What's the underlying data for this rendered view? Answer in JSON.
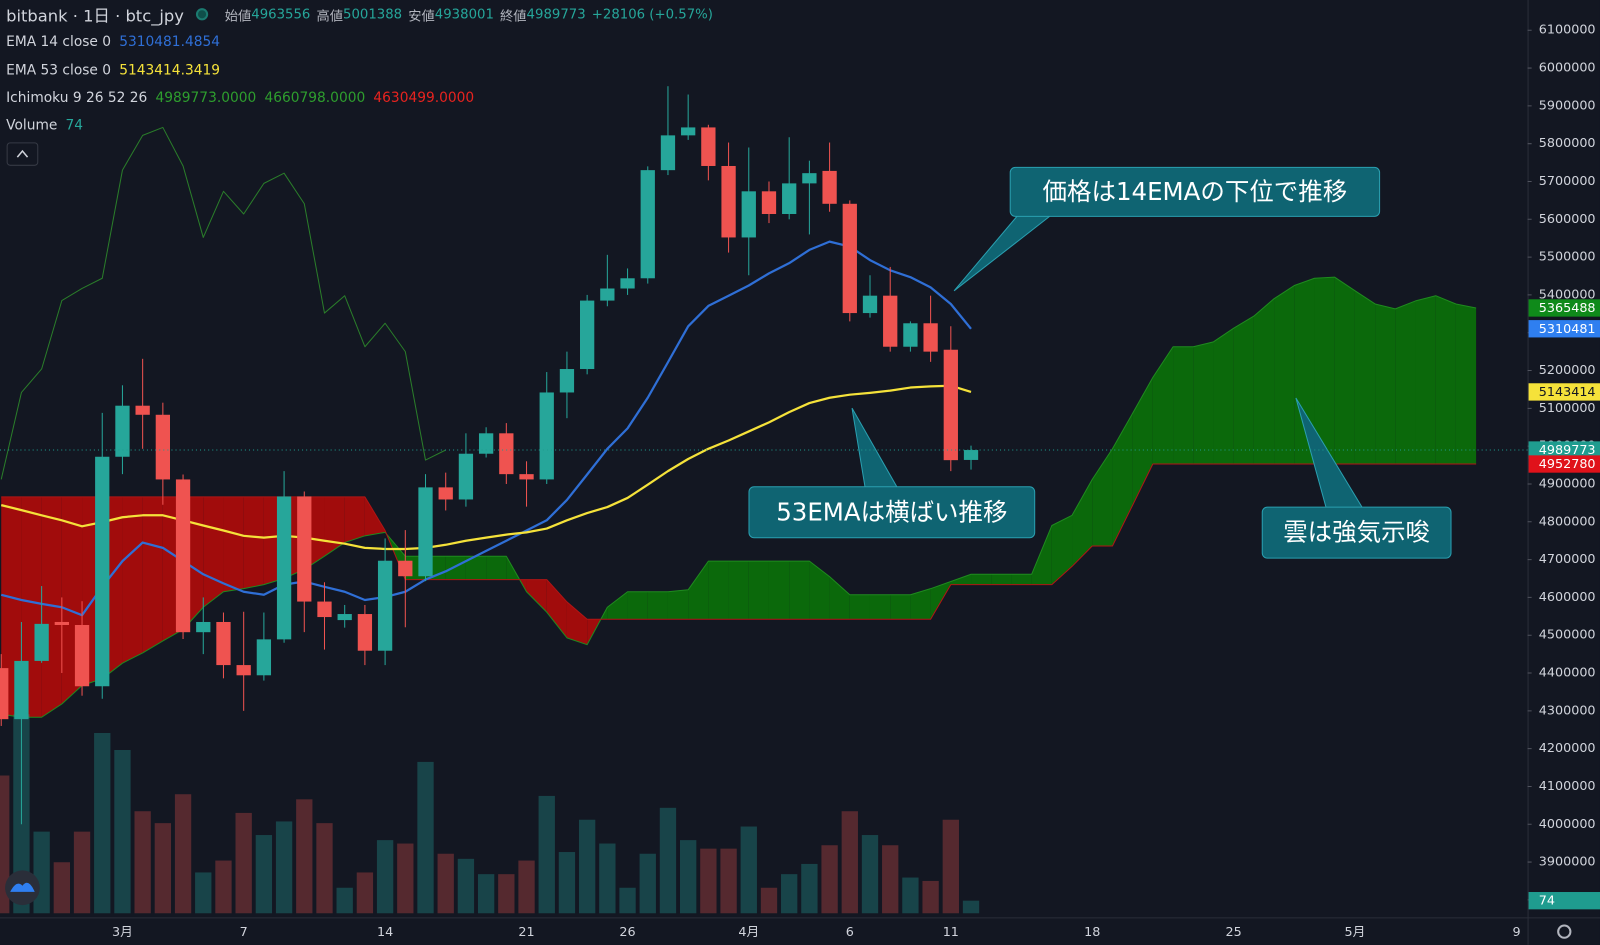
{
  "header": {
    "title": "bitbank · 1日 · btc_jpy",
    "ohlc": [
      {
        "label": "始値",
        "value": 4963556
      },
      {
        "label": "高値",
        "value": 5001388
      },
      {
        "label": "安値",
        "value": 4938001
      },
      {
        "label": "終値",
        "value": 4989773
      }
    ],
    "change": "+28106 (+0.57%)"
  },
  "chart_data": {
    "type": "candlestick",
    "categories": [
      null,
      null,
      null,
      null,
      null,
      null,
      "3月",
      null,
      null,
      null,
      null,
      null,
      "7",
      null,
      null,
      null,
      null,
      null,
      null,
      "14",
      null,
      null,
      null,
      null,
      null,
      null,
      "21",
      null,
      null,
      null,
      null,
      "26",
      null,
      null,
      null,
      null,
      null,
      "4月",
      null,
      null,
      null,
      null,
      "6",
      null,
      null,
      null,
      null,
      "11",
      null,
      null,
      null,
      null,
      null,
      null,
      "18",
      null,
      null,
      null,
      null,
      null,
      null,
      "25",
      null,
      null,
      null,
      null,
      null,
      "5月",
      null,
      null,
      null,
      null,
      null,
      null,
      null,
      "9"
    ],
    "open": [
      4413000,
      4278000,
      4432000,
      4535000,
      4527000,
      4365000,
      4972000,
      5107000,
      5083000,
      4912000,
      4508000,
      4535000,
      4421000,
      4394000,
      4489000,
      4867000,
      4589000,
      4540000,
      4556000,
      4459000,
      4697000,
      4656000,
      4891000,
      4859000,
      4980000,
      5034000,
      4926000,
      4912000,
      5142000,
      5204000,
      5385000,
      5417000,
      5444000,
      5730000,
      5822000,
      5843000,
      5741000,
      5552000,
      5674000,
      5614000,
      5695000,
      5728000,
      5641000,
      5352000,
      5398000,
      5263000,
      5325000,
      5255000,
      4963556,
      null,
      null,
      null,
      null,
      null,
      null,
      null,
      null,
      null,
      null,
      null,
      null,
      null,
      null,
      null,
      null,
      null,
      null,
      null,
      null,
      null,
      null,
      null,
      null,
      null,
      null,
      null
    ],
    "high": [
      4450000,
      4535000,
      4630000,
      4600000,
      4590000,
      5088000,
      5161000,
      5231000,
      5115000,
      4925000,
      4600000,
      4560000,
      4562000,
      4560000,
      4934000,
      4880000,
      4640000,
      4580000,
      4580000,
      4756000,
      4778000,
      4926000,
      4930000,
      5034000,
      5050000,
      5061000,
      4960000,
      5196000,
      5250000,
      5400000,
      5506000,
      5470000,
      5740000,
      5952000,
      5930000,
      5850000,
      5803000,
      5790000,
      5700000,
      5817000,
      5755000,
      5803000,
      5650000,
      5452000,
      5474000,
      5330000,
      5398000,
      5317000,
      5001388,
      null,
      null,
      null,
      null,
      null,
      null,
      null,
      null,
      null,
      null,
      null,
      null,
      null,
      null,
      null,
      null,
      null,
      null,
      null,
      null,
      null,
      null,
      null,
      null,
      null,
      null,
      null
    ],
    "low": [
      4260000,
      4000000,
      4427000,
      4400000,
      4340000,
      4332000,
      4926000,
      4993000,
      4845000,
      4490000,
      4450000,
      4386000,
      4300000,
      4380000,
      4480000,
      4508000,
      4462000,
      4520000,
      4421000,
      4421000,
      4521000,
      4643000,
      4830000,
      4840000,
      4970000,
      4900000,
      4840000,
      4900000,
      5074000,
      5190000,
      5370000,
      5400000,
      5430000,
      5717000,
      5810000,
      5703000,
      5512000,
      5452000,
      5590000,
      5600000,
      5560000,
      5620000,
      5330000,
      5340000,
      5250000,
      5250000,
      5223000,
      4934000,
      4938001,
      null,
      null,
      null,
      null,
      null,
      null,
      null,
      null,
      null,
      null,
      null,
      null,
      null,
      null,
      null,
      null,
      null,
      null,
      null,
      null,
      null,
      null,
      null,
      null,
      null,
      null,
      null
    ],
    "close": [
      4278000,
      4432000,
      4530000,
      4527000,
      4365000,
      4972000,
      5107000,
      5083000,
      4912000,
      4508000,
      4535000,
      4421000,
      4394000,
      4489000,
      4867000,
      4589000,
      4548000,
      4556000,
      4459000,
      4697000,
      4656000,
      4891000,
      4859000,
      4980000,
      5034000,
      4926000,
      4912000,
      5142000,
      5204000,
      5385000,
      5417000,
      5444000,
      5730000,
      5822000,
      5843000,
      5741000,
      5552000,
      5674000,
      5614000,
      5695000,
      5722000,
      5641000,
      5352000,
      5398000,
      5263000,
      5325000,
      5250000,
      4963000,
      4989773,
      null,
      null,
      null,
      null,
      null,
      null,
      null,
      null,
      null,
      null,
      null,
      null,
      null,
      null,
      null,
      null,
      null,
      null,
      null,
      null,
      null,
      null,
      null,
      null,
      null,
      null,
      null
    ],
    "up_color": "#26a69a",
    "down_color": "#ef5350",
    "ylim": [
      3770000,
      6180000
    ],
    "yticks": [
      3800000,
      3900000,
      4000000,
      4100000,
      4200000,
      4300000,
      4400000,
      4500000,
      4600000,
      4700000,
      4800000,
      4900000,
      5000000,
      5100000,
      5200000,
      5300000,
      5400000,
      5500000,
      5600000,
      5700000,
      5800000,
      5900000,
      6000000,
      6100000
    ],
    "grid": false,
    "series": [
      {
        "name": "EMA 14 close 0",
        "legend_value": "5310481.4854",
        "color": "#2f6fd6",
        "values": [
          4607000,
          4593000,
          4583000,
          4574000,
          4553000,
          4628000,
          4696000,
          4745000,
          4731000,
          4696000,
          4661000,
          4637000,
          4615000,
          4607000,
          4634000,
          4642000,
          4628000,
          4615000,
          4593000,
          4601000,
          4615000,
          4647000,
          4669000,
          4696000,
          4723000,
          4750000,
          4777000,
          4804000,
          4858000,
          4925000,
          4993000,
          5047000,
          5128000,
          5222000,
          5317000,
          5371000,
          5398000,
          5425000,
          5457000,
          5484000,
          5519000,
          5541000,
          5528000,
          5492000,
          5465000,
          5447000,
          5420000,
          5376000,
          5310481.4854,
          null,
          null,
          null,
          null,
          null,
          null,
          null,
          null,
          null,
          null,
          null,
          null,
          null,
          null,
          null,
          null,
          null,
          null,
          null,
          null,
          null,
          null,
          null,
          null,
          null,
          null,
          null
        ]
      },
      {
        "name": "EMA 53 close 0",
        "legend_value": "5143414.3419",
        "color": "#f5e23a",
        "values": [
          4844000,
          4831000,
          4817000,
          4804000,
          4788000,
          4799000,
          4812000,
          4817000,
          4817000,
          4804000,
          4790000,
          4777000,
          4763000,
          4758000,
          4763000,
          4758000,
          4750000,
          4742000,
          4731000,
          4728000,
          4728000,
          4731000,
          4739000,
          4750000,
          4758000,
          4766000,
          4772000,
          4782000,
          4804000,
          4823000,
          4839000,
          4863000,
          4898000,
          4934000,
          4966000,
          4993000,
          5015000,
          5039000,
          5063000,
          5090000,
          5114000,
          5128000,
          5136000,
          5141000,
          5147000,
          5155000,
          5158000,
          5160000,
          5143414.3419,
          null,
          null,
          null,
          null,
          null,
          null,
          null,
          null,
          null,
          null,
          null,
          null,
          null,
          null,
          null,
          null,
          null,
          null,
          null,
          null,
          null,
          null,
          null,
          null,
          null,
          null,
          null
        ]
      }
    ],
    "ichimoku": {
      "name": "Ichimoku 9 26 52 26",
      "legend_values": [
        {
          "text": "4989773.0000",
          "color": "#2e9e2e"
        },
        {
          "text": "4660798.0000",
          "color": "#2e9e2e"
        },
        {
          "text": "4630499.0000",
          "color": "#e8231f"
        }
      ],
      "bull_color": "#0b690b",
      "bear_color": "#a10c0c",
      "span_a_color": "#1f8a1f",
      "span_b_color": "#b01515",
      "lagging_color": "#2a7d2a",
      "span_a": [
        4291000,
        4283000,
        4283000,
        4318000,
        4367000,
        4385000,
        4426000,
        4453000,
        4485000,
        4515000,
        4574000,
        4615000,
        4623000,
        4634000,
        4650000,
        4674000,
        4709000,
        4745000,
        4763000,
        4772000,
        4709000,
        4709000,
        4709000,
        4709000,
        4709000,
        4709000,
        4615000,
        4561000,
        4493000,
        4475000,
        4574000,
        4615000,
        4615000,
        4615000,
        4620000,
        4696000,
        4696000,
        4696000,
        4696000,
        4696000,
        4696000,
        4655000,
        4607000,
        4607000,
        4607000,
        4607000,
        4623000,
        4642000,
        4661000,
        4661000,
        4661000,
        4661000,
        4790000,
        4817000,
        4912000,
        4993000,
        5087000,
        5182000,
        5263000,
        5263000,
        5276000,
        5312000,
        5344000,
        5390000,
        5425000,
        5444000,
        5447000,
        5411000,
        5376000,
        5363000,
        5384000,
        5398000,
        5376000,
        5365488,
        null,
        null
      ],
      "span_b": [
        4866000,
        4866000,
        4866000,
        4866000,
        4866000,
        4866000,
        4866000,
        4866000,
        4866000,
        4866000,
        4866000,
        4866000,
        4866000,
        4866000,
        4866000,
        4866000,
        4866000,
        4866000,
        4866000,
        4777000,
        4647000,
        4647000,
        4647000,
        4647000,
        4647000,
        4647000,
        4647000,
        4647000,
        4588000,
        4542000,
        4542000,
        4542000,
        4542000,
        4542000,
        4542000,
        4542000,
        4542000,
        4542000,
        4542000,
        4542000,
        4542000,
        4542000,
        4542000,
        4542000,
        4542000,
        4542000,
        4542000,
        4634000,
        4634000,
        4634000,
        4634000,
        4634000,
        4634000,
        4682000,
        4736000,
        4736000,
        4844000,
        4952780,
        4952780,
        4952780,
        4952780,
        4952780,
        4952780,
        4952780,
        4952780,
        4952780,
        4952780,
        4952780,
        4952780,
        4952780,
        4952780,
        4952780,
        4952780,
        4952780,
        null,
        null
      ],
      "lagging": [
        4912000,
        5142000,
        5204000,
        5385000,
        5417000,
        5444000,
        5730000,
        5822000,
        5843000,
        5741000,
        5552000,
        5674000,
        5614000,
        5695000,
        5722000,
        5641000,
        5352000,
        5398000,
        5263000,
        5325000,
        5250000,
        4963000,
        4989773,
        null,
        null,
        null,
        null,
        null,
        null,
        null,
        null,
        null,
        null,
        null,
        null,
        null,
        null,
        null,
        null,
        null,
        null,
        null,
        null,
        null,
        null,
        null,
        null,
        null,
        null,
        null,
        null,
        null,
        null,
        null,
        null,
        null,
        null,
        null,
        null,
        null,
        null,
        null,
        null,
        null,
        null,
        null,
        null,
        null,
        null,
        null,
        null,
        null,
        null,
        null,
        null,
        null
      ]
    },
    "volume": {
      "name": "Volume",
      "legend_value": 74,
      "ylim": [
        0,
        1200
      ],
      "up_color": "rgba(38,166,154,0.32)",
      "down_color": "rgba(239,83,80,0.30)",
      "values": [
        810,
        1170,
        480,
        300,
        480,
        1060,
        960,
        600,
        530,
        700,
        240,
        310,
        590,
        460,
        540,
        670,
        530,
        150,
        240,
        430,
        410,
        890,
        350,
        320,
        230,
        230,
        310,
        690,
        360,
        550,
        410,
        150,
        350,
        620,
        430,
        380,
        380,
        510,
        150,
        230,
        290,
        400,
        600,
        460,
        400,
        210,
        190,
        550,
        74,
        null,
        null,
        null,
        null,
        null,
        null,
        null,
        null,
        null,
        null,
        null,
        null,
        null,
        null,
        null,
        null,
        null,
        null,
        null,
        null,
        null,
        null,
        null,
        null,
        null,
        null,
        null
      ]
    },
    "price_tags": [
      {
        "value": 5365488,
        "color": "#0f8a1a",
        "text_color": "#ffffff"
      },
      {
        "value": 5310481,
        "color": "#2f7ff0",
        "text_color": "#ffffff"
      },
      {
        "value": 5143414,
        "color": "#f5e23a",
        "text_color": "#131722"
      },
      {
        "value": 4989773,
        "color": "#1f9c8f",
        "text_color": "#ffffff"
      },
      {
        "value": 4952780,
        "color": "#e0121a",
        "text_color": "#ffffff"
      },
      {
        "value": 74,
        "color": "#1f9c8f",
        "text_color": "#ffffff",
        "pane": "volume"
      }
    ],
    "annotations": [
      "価格は14EMAの下位で推移",
      "53EMAは横ばい推移",
      "雲は強気示唆"
    ]
  }
}
